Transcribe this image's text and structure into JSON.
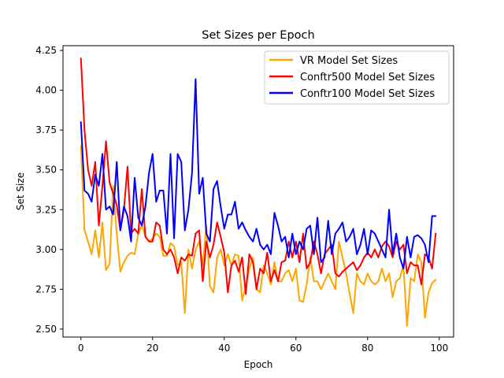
{
  "chart_data": {
    "type": "line",
    "title": "Set Sizes per Epoch",
    "xlabel": "Epoch",
    "ylabel": "Set Size",
    "xlim": [
      -5,
      104
    ],
    "ylim": [
      2.45,
      4.28
    ],
    "xticks": [
      0,
      20,
      40,
      60,
      80,
      100
    ],
    "yticks": [
      2.5,
      2.75,
      3.0,
      3.25,
      3.5,
      3.75,
      4.0,
      4.25
    ],
    "ytick_labels": [
      "2.50",
      "2.75",
      "3.00",
      "3.25",
      "3.50",
      "3.75",
      "4.00",
      "4.25"
    ],
    "legend_position": "top-right",
    "grid": false,
    "series": [
      {
        "name": "VR Model Set Sizes",
        "color": "#ffa500",
        "values": [
          3.65,
          3.12,
          3.05,
          2.97,
          3.12,
          2.95,
          3.17,
          2.87,
          2.91,
          3.4,
          3.1,
          2.86,
          2.92,
          2.96,
          2.98,
          2.97,
          3.1,
          3.15,
          3.08,
          3.05,
          3.07,
          3.1,
          3.08,
          2.96,
          2.96,
          3.04,
          3.02,
          2.9,
          2.92,
          2.6,
          3.0,
          2.88,
          3.0,
          3.05,
          2.9,
          3.15,
          2.77,
          2.73,
          2.95,
          3.0,
          2.9,
          2.97,
          2.9,
          2.97,
          2.96,
          2.68,
          2.77,
          2.88,
          2.95,
          2.75,
          2.73,
          2.9,
          2.85,
          2.78,
          2.92,
          2.8,
          2.8,
          2.85,
          2.87,
          2.8,
          2.88,
          2.68,
          2.67,
          2.78,
          2.95,
          2.8,
          2.8,
          2.75,
          2.8,
          2.85,
          2.8,
          2.75,
          3.05,
          2.95,
          2.85,
          2.72,
          2.6,
          2.85,
          2.8,
          2.78,
          2.85,
          2.8,
          2.78,
          2.8,
          2.88,
          2.8,
          2.85,
          2.7,
          2.8,
          2.82,
          2.9,
          2.52,
          2.82,
          2.8,
          2.97,
          2.92,
          2.57,
          2.73,
          2.79,
          2.81
        ]
      },
      {
        "name": "Conftr500 Model Set Sizes",
        "color": "#ff0000",
        "values": [
          4.2,
          3.75,
          3.5,
          3.4,
          3.55,
          3.15,
          3.4,
          3.68,
          3.42,
          3.35,
          3.28,
          3.12,
          3.25,
          3.52,
          3.1,
          3.13,
          3.1,
          3.38,
          3.08,
          3.05,
          3.05,
          3.17,
          3.15,
          3.0,
          2.97,
          3.0,
          2.95,
          2.85,
          2.95,
          2.93,
          2.97,
          2.96,
          3.1,
          3.12,
          2.8,
          3.05,
          2.95,
          3.03,
          3.17,
          3.08,
          2.98,
          2.73,
          2.9,
          2.93,
          2.86,
          2.95,
          2.72,
          2.97,
          2.92,
          2.75,
          2.88,
          2.85,
          2.98,
          2.8,
          2.87,
          2.8,
          2.92,
          2.93,
          3.05,
          2.95,
          3.05,
          2.92,
          3.1,
          2.88,
          2.92,
          3.05,
          2.97,
          2.85,
          2.97,
          3.0,
          3.03,
          2.85,
          2.83,
          2.86,
          2.88,
          2.9,
          2.92,
          2.87,
          2.9,
          2.95,
          2.98,
          2.95,
          3.0,
          2.95,
          3.02,
          3.05,
          3.02,
          2.95,
          3.05,
          3.0,
          3.03,
          2.85,
          2.92,
          2.9,
          2.9,
          2.78,
          2.97,
          2.95,
          2.88,
          3.1
        ]
      },
      {
        "name": "Conftr100 Model Set Sizes",
        "color": "#0000ff",
        "values": [
          3.8,
          3.37,
          3.35,
          3.3,
          3.47,
          3.4,
          3.6,
          3.25,
          3.27,
          3.22,
          3.55,
          3.12,
          3.27,
          3.21,
          3.05,
          3.45,
          3.2,
          3.15,
          3.27,
          3.48,
          3.6,
          3.3,
          3.37,
          3.37,
          3.1,
          3.6,
          3.07,
          3.6,
          3.55,
          3.12,
          3.25,
          3.48,
          4.07,
          3.35,
          3.45,
          3.1,
          3.05,
          3.38,
          3.43,
          3.27,
          3.13,
          3.22,
          3.22,
          3.3,
          3.13,
          3.17,
          3.12,
          3.08,
          3.05,
          3.13,
          3.03,
          3.0,
          3.03,
          2.97,
          3.23,
          3.15,
          3.05,
          3.08,
          2.95,
          3.1,
          2.97,
          3.05,
          3.0,
          3.13,
          3.15,
          2.97,
          3.2,
          2.92,
          2.95,
          3.18,
          2.97,
          3.1,
          3.13,
          3.17,
          3.05,
          3.08,
          3.13,
          2.97,
          3.03,
          3.13,
          2.97,
          3.12,
          3.1,
          3.05,
          3.0,
          2.95,
          3.25,
          2.97,
          3.1,
          2.95,
          2.88,
          3.08,
          2.95,
          3.08,
          3.09,
          3.07,
          3.03,
          2.92,
          3.21,
          3.21
        ]
      }
    ]
  }
}
